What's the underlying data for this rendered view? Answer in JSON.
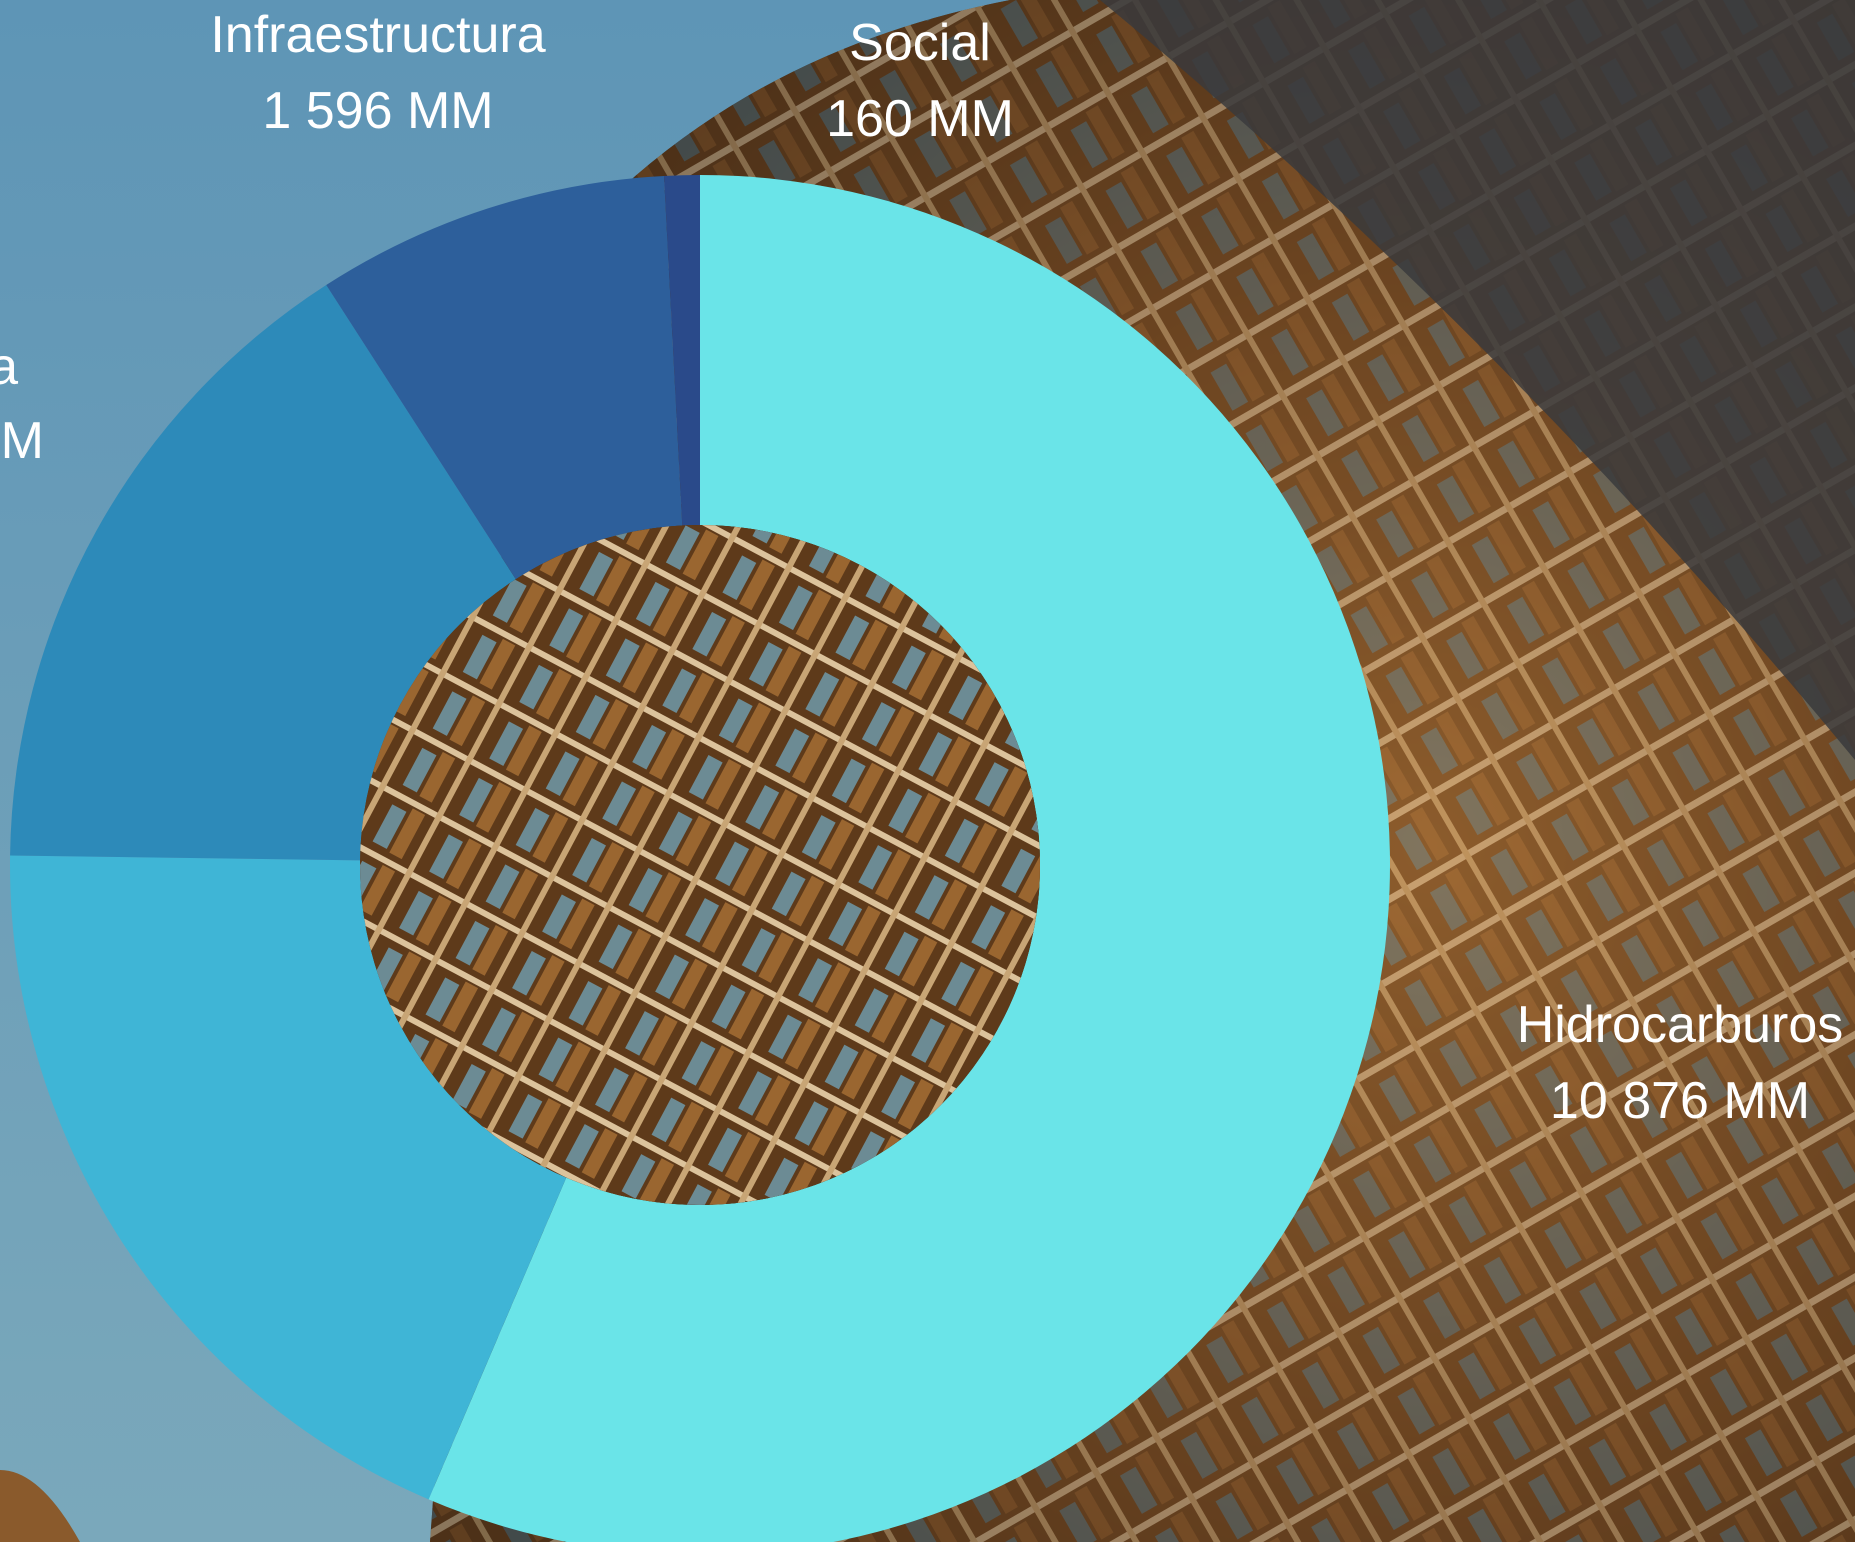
{
  "chart_data": {
    "type": "pie",
    "variant": "donut",
    "title": "",
    "series": [
      {
        "values": [
          10876,
          3620,
          3020,
          1596,
          160
        ],
        "labels": [
          "Hidrocarburos",
          "",
          "",
          "Infraestructura",
          "Social"
        ],
        "value_labels": [
          "10 876 MM",
          "",
          "",
          "1 596 MM",
          "160 MM"
        ],
        "colors": [
          "#6ae4e8",
          "#3fb5d6",
          "#2d8ab9",
          "#2d5f9b",
          "#2a4a8a"
        ]
      }
    ],
    "partial_labels": [
      {
        "label_fragment": "a",
        "value_fragment": "M"
      }
    ],
    "legend": "none",
    "background": {
      "description_colors": {
        "sky": "#6a9fbb",
        "facade_dark": "#2a1d14",
        "facade_warm": "#a06a35",
        "fin": "#d8c3a0",
        "glass": "#5d8fa8"
      }
    }
  }
}
